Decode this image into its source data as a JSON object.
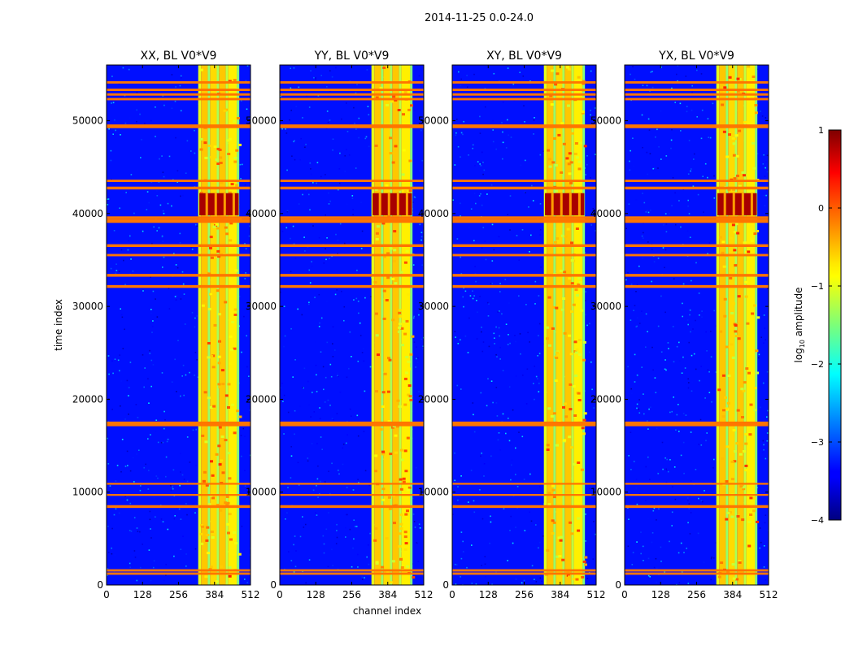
{
  "chart_data": {
    "type": "heatmap",
    "suptitle": "2014-11-25 0.0-24.0",
    "xlabel": "channel index",
    "ylabel": "time index",
    "xlim": [
      0,
      512
    ],
    "ylim": [
      0,
      56000
    ],
    "x_ticks": [
      0,
      128,
      256,
      384,
      512
    ],
    "y_ticks": [
      0,
      10000,
      20000,
      30000,
      40000,
      50000
    ],
    "colorbar": {
      "label": "log10 amplitude",
      "label_main": "log",
      "label_sub": "10",
      "label_rest": " amplitude",
      "range": [
        -4,
        1
      ],
      "ticks": [
        1,
        0,
        -1,
        -2,
        -3,
        -4
      ],
      "tick_labels": [
        "1",
        "0",
        "−1",
        "−2",
        "−3",
        "−4"
      ],
      "colormap": "jet"
    },
    "panels": [
      {
        "title": "XX, BL V0*V9",
        "polarization": "XX",
        "baseline": "V0*V9"
      },
      {
        "title": "YY, BL V0*V9",
        "polarization": "YY",
        "baseline": "V0*V9"
      },
      {
        "title": "XY, BL V0*V9",
        "polarization": "XY",
        "baseline": "V0*V9"
      },
      {
        "title": "YX, BL V0*V9",
        "polarization": "YX",
        "baseline": "V0*V9"
      }
    ],
    "features": {
      "background_level": -3.3,
      "bright_channels": [
        {
          "from": 326,
          "to": 336,
          "level": -1.0
        },
        {
          "from": 336,
          "to": 360,
          "level": -0.6
        },
        {
          "from": 360,
          "to": 368,
          "level": -1.4
        },
        {
          "from": 368,
          "to": 392,
          "level": -0.7
        },
        {
          "from": 392,
          "to": 400,
          "level": -1.3
        },
        {
          "from": 400,
          "to": 424,
          "level": -0.6
        },
        {
          "from": 424,
          "to": 432,
          "level": -1.2
        },
        {
          "from": 432,
          "to": 464,
          "level": -0.8
        },
        {
          "from": 464,
          "to": 472,
          "level": -1.5
        }
      ],
      "flagged_rows": [
        {
          "t": 1100,
          "h": 250
        },
        {
          "t": 1450,
          "h": 250
        },
        {
          "t": 8300,
          "h": 300
        },
        {
          "t": 9600,
          "h": 200
        },
        {
          "t": 10800,
          "h": 200
        },
        {
          "t": 17100,
          "h": 500
        },
        {
          "t": 32000,
          "h": 300
        },
        {
          "t": 33200,
          "h": 300
        },
        {
          "t": 35400,
          "h": 250
        },
        {
          "t": 36400,
          "h": 300
        },
        {
          "t": 39000,
          "h": 400
        },
        {
          "t": 39400,
          "h": 300
        },
        {
          "t": 42600,
          "h": 300
        },
        {
          "t": 43400,
          "h": 250
        },
        {
          "t": 49200,
          "h": 400
        },
        {
          "t": 52200,
          "h": 250
        },
        {
          "t": 52700,
          "h": 250
        },
        {
          "t": 53200,
          "h": 250
        },
        {
          "t": 54000,
          "h": 250
        }
      ],
      "rfi_band": {
        "t_from": 39800,
        "t_to": 42200,
        "ch_from": 330,
        "ch_to": 470,
        "level": 0.8
      }
    }
  }
}
